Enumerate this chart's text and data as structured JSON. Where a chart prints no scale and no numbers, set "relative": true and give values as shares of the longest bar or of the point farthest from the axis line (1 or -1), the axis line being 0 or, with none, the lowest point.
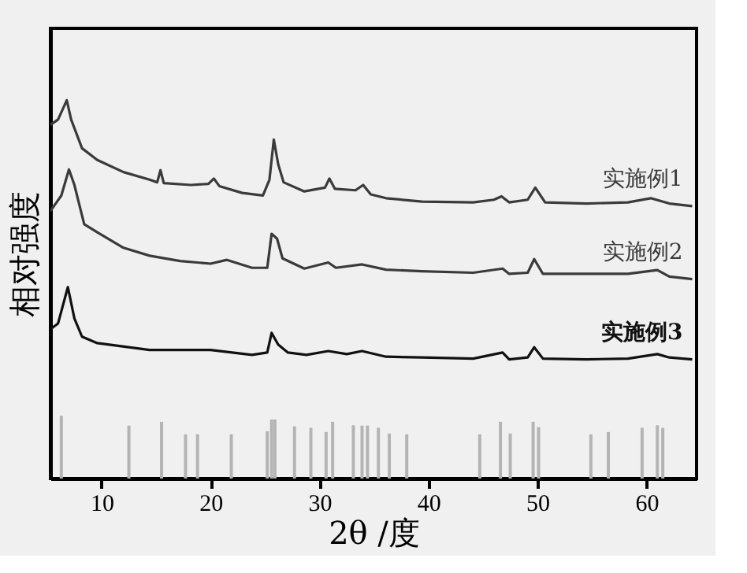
{
  "chart_data": {
    "type": "line",
    "relative": true,
    "xlabel": "2θ /度",
    "ylabel": "相对强度",
    "xlim": [
      5.3,
      64.6
    ],
    "xticks": [
      10,
      20,
      30,
      40,
      50,
      60
    ],
    "tick_labels": "x",
    "legend": false,
    "grid": false,
    "series": [
      {
        "name": "实施例1",
        "color": "#3a3a3a",
        "x": [
          5.3,
          6.0,
          6.8,
          7.2,
          8.2,
          9.6,
          12.0,
          14.4,
          15.1,
          15.4,
          15.7,
          18.2,
          19.8,
          20.3,
          20.8,
          22.9,
          24.8,
          25.4,
          25.8,
          26.2,
          26.7,
          28.6,
          30.5,
          30.9,
          31.4,
          33.3,
          34.0,
          34.7,
          36.1,
          39.4,
          44.1,
          46.0,
          46.7,
          47.4,
          49.1,
          49.8,
          50.7,
          54.5,
          58.3,
          60.4,
          62.1,
          64.2
        ],
        "values": [
          0.935,
          0.949,
          1.0,
          0.949,
          0.873,
          0.842,
          0.81,
          0.79,
          0.783,
          0.815,
          0.781,
          0.776,
          0.779,
          0.793,
          0.773,
          0.755,
          0.748,
          0.79,
          0.896,
          0.831,
          0.783,
          0.759,
          0.769,
          0.793,
          0.766,
          0.762,
          0.776,
          0.751,
          0.741,
          0.732,
          0.73,
          0.737,
          0.746,
          0.73,
          0.737,
          0.769,
          0.73,
          0.727,
          0.73,
          0.741,
          0.727,
          0.72
        ]
      },
      {
        "name": "实施例2",
        "color": "#3a3a3a",
        "x": [
          5.3,
          6.3,
          7.0,
          7.5,
          8.4,
          9.6,
          12.0,
          14.4,
          17.2,
          20.0,
          21.5,
          23.8,
          25.2,
          25.6,
          26.1,
          26.6,
          28.6,
          30.8,
          31.5,
          33.9,
          36.1,
          39.4,
          44.1,
          46.8,
          47.4,
          49.1,
          49.7,
          50.5,
          54.5,
          58.3,
          61.0,
          62.1,
          64.2
        ],
        "values": [
          0.707,
          0.748,
          0.817,
          0.776,
          0.672,
          0.651,
          0.61,
          0.589,
          0.575,
          0.568,
          0.578,
          0.557,
          0.557,
          0.647,
          0.634,
          0.582,
          0.555,
          0.571,
          0.557,
          0.566,
          0.552,
          0.548,
          0.544,
          0.555,
          0.541,
          0.544,
          0.58,
          0.541,
          0.541,
          0.541,
          0.551,
          0.534,
          0.527
        ]
      },
      {
        "name": "实施例3",
        "color": "#111111",
        "x": [
          5.3,
          6.0,
          6.9,
          7.5,
          8.2,
          9.6,
          14.4,
          20.0,
          23.8,
          25.2,
          25.6,
          26.2,
          27.1,
          28.8,
          30.8,
          32.5,
          33.9,
          36.1,
          39.4,
          44.1,
          46.8,
          47.4,
          49.1,
          49.7,
          50.5,
          54.5,
          58.3,
          61.0,
          62.1,
          64.2
        ],
        "values": [
          0.395,
          0.41,
          0.506,
          0.423,
          0.375,
          0.358,
          0.34,
          0.34,
          0.327,
          0.333,
          0.385,
          0.354,
          0.333,
          0.327,
          0.337,
          0.329,
          0.337,
          0.322,
          0.32,
          0.317,
          0.333,
          0.315,
          0.32,
          0.347,
          0.317,
          0.315,
          0.317,
          0.329,
          0.32,
          0.315
        ]
      },
      {
        "type": "bar",
        "color": "#b4b4b4",
        "x": [
          6.3,
          12.5,
          15.5,
          17.7,
          18.8,
          21.9,
          25.2,
          25.6,
          25.9,
          27.7,
          29.2,
          30.6,
          31.2,
          33.1,
          33.9,
          34.4,
          35.4,
          36.4,
          38.0,
          44.7,
          46.6,
          47.5,
          49.6,
          50.1,
          54.9,
          56.5,
          59.6,
          61.0,
          61.5
        ],
        "values": [
          0.166,
          0.14,
          0.15,
          0.117,
          0.117,
          0.117,
          0.125,
          0.156,
          0.156,
          0.138,
          0.134,
          0.123,
          0.15,
          0.141,
          0.14,
          0.14,
          0.134,
          0.119,
          0.117,
          0.117,
          0.15,
          0.119,
          0.15,
          0.136,
          0.117,
          0.123,
          0.134,
          0.141,
          0.134
        ]
      }
    ]
  }
}
